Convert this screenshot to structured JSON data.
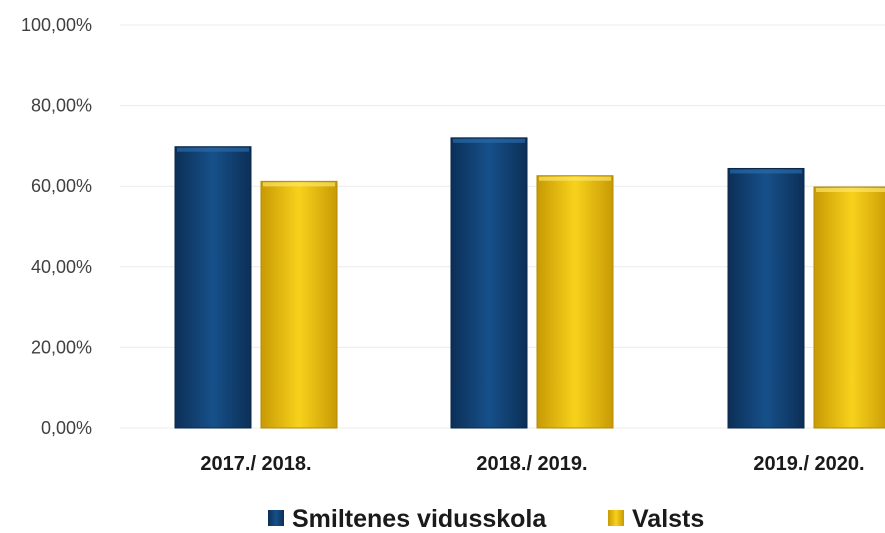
{
  "chart_data": {
    "type": "bar",
    "categories": [
      "2017./ 2018.",
      "2018./ 2019.",
      "2019./ 2020."
    ],
    "series": [
      {
        "name": "Smiltenes vidusskola",
        "color": "#13457a",
        "values": [
          69.8,
          72.0,
          64.4
        ]
      },
      {
        "name": "Valsts",
        "color": "#f2c512",
        "values": [
          61.2,
          62.6,
          59.8
        ]
      }
    ],
    "yticks": [
      "0,00%",
      "20,00%",
      "40,00%",
      "60,00%",
      "80,00%",
      "100,00%"
    ],
    "ylim": [
      0,
      100
    ],
    "grid": true,
    "legend": "bottom"
  }
}
